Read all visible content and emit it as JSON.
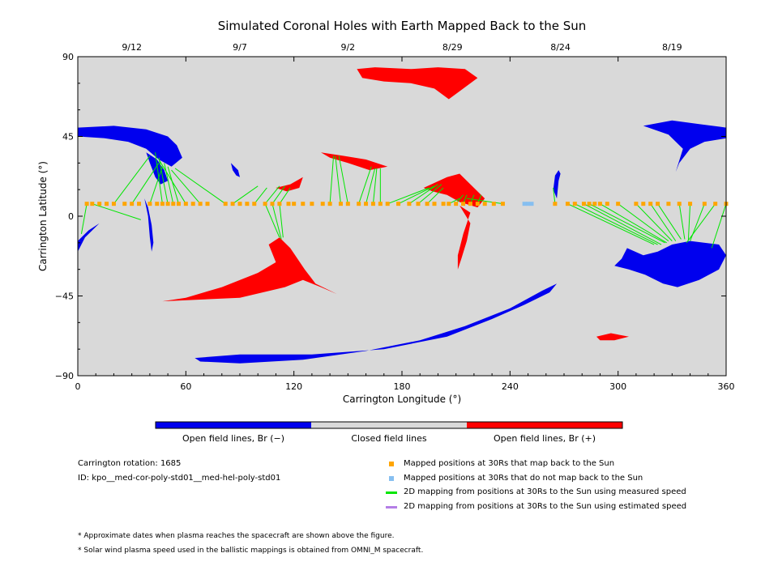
{
  "chart_data": {
    "type": "scatter",
    "title": "Simulated Coronal Holes with Earth Mapped Back to the Sun",
    "xlabel": "Carrington Longitude (°)",
    "ylabel": "Carrington Latitude (°)",
    "xlim": [
      0,
      360
    ],
    "ylim": [
      -90,
      90
    ],
    "x_ticks": [
      "0",
      "60",
      "120",
      "180",
      "240",
      "300",
      "360"
    ],
    "y_ticks": [
      "90",
      "45",
      "0",
      "−45",
      "−90"
    ],
    "top_axis_dates": [
      {
        "label": "9/12",
        "lon": 30
      },
      {
        "label": "9/7",
        "lon": 90
      },
      {
        "label": "9/2",
        "lon": 150
      },
      {
        "label": "8/29",
        "lon": 208
      },
      {
        "label": "8/24",
        "lon": 268
      },
      {
        "label": "8/19",
        "lon": 330
      }
    ],
    "colors": {
      "background": "#d9d9d9",
      "open_negative": "#0000ee",
      "open_positive": "#ff0000",
      "mapped": "#ffa500",
      "not_mapped": "#87bff0",
      "measured_line": "#00e600",
      "estimated_line": "#b47ee6"
    },
    "coronal_holes": [
      {
        "polarity": "negative",
        "outline": [
          [
            0,
            50
          ],
          [
            20,
            51
          ],
          [
            38,
            49
          ],
          [
            50,
            45
          ],
          [
            55,
            40
          ],
          [
            58,
            33
          ],
          [
            52,
            28
          ],
          [
            45,
            32
          ],
          [
            38,
            38
          ],
          [
            28,
            42
          ],
          [
            15,
            44
          ],
          [
            0,
            45
          ]
        ]
      },
      {
        "polarity": "negative",
        "outline": [
          [
            38,
            36
          ],
          [
            44,
            32
          ],
          [
            48,
            26
          ],
          [
            50,
            20
          ],
          [
            46,
            18
          ],
          [
            43,
            22
          ],
          [
            40,
            30
          ]
        ]
      },
      {
        "polarity": "negative",
        "outline": [
          [
            37,
            10
          ],
          [
            39,
            0
          ],
          [
            40,
            -12
          ],
          [
            41,
            -20
          ],
          [
            42,
            -15
          ],
          [
            41,
            -5
          ],
          [
            39,
            5
          ]
        ]
      },
      {
        "polarity": "negative",
        "outline": [
          [
            85,
            30
          ],
          [
            89,
            26
          ],
          [
            90,
            22
          ],
          [
            88,
            23
          ],
          [
            86,
            26
          ]
        ]
      },
      {
        "polarity": "negative",
        "outline": [
          [
            0,
            -14
          ],
          [
            6,
            -8
          ],
          [
            12,
            -4
          ],
          [
            8,
            -8
          ],
          [
            4,
            -12
          ],
          [
            0,
            -20
          ]
        ]
      },
      {
        "polarity": "negative",
        "outline": [
          [
            314,
            51
          ],
          [
            330,
            54
          ],
          [
            345,
            52
          ],
          [
            360,
            50
          ],
          [
            360,
            44
          ],
          [
            348,
            42
          ],
          [
            340,
            38
          ],
          [
            334,
            30
          ],
          [
            332,
            25
          ],
          [
            336,
            38
          ],
          [
            328,
            46
          ]
        ]
      },
      {
        "polarity": "negative",
        "outline": [
          [
            265,
            23
          ],
          [
            267,
            26
          ],
          [
            268,
            24
          ],
          [
            267,
            20
          ],
          [
            266,
            10
          ],
          [
            264,
            15
          ]
        ]
      },
      {
        "polarity": "negative",
        "outline": [
          [
            305,
            -18
          ],
          [
            314,
            -22
          ],
          [
            322,
            -20
          ],
          [
            330,
            -16
          ],
          [
            340,
            -14
          ],
          [
            356,
            -16
          ],
          [
            360,
            -22
          ],
          [
            356,
            -30
          ],
          [
            345,
            -36
          ],
          [
            333,
            -40
          ],
          [
            325,
            -38
          ],
          [
            315,
            -33
          ],
          [
            306,
            -30
          ],
          [
            298,
            -28
          ],
          [
            302,
            -24
          ]
        ]
      },
      {
        "polarity": "negative",
        "outline": [
          [
            65,
            -80
          ],
          [
            90,
            -78
          ],
          [
            130,
            -78
          ],
          [
            170,
            -75
          ],
          [
            205,
            -68
          ],
          [
            230,
            -58
          ],
          [
            248,
            -50
          ],
          [
            262,
            -43
          ],
          [
            266,
            -38
          ],
          [
            258,
            -42
          ],
          [
            240,
            -52
          ],
          [
            215,
            -62
          ],
          [
            190,
            -70
          ],
          [
            160,
            -76
          ],
          [
            125,
            -81
          ],
          [
            90,
            -83
          ],
          [
            68,
            -82
          ]
        ]
      },
      {
        "polarity": "positive",
        "outline": [
          [
            155,
            83
          ],
          [
            165,
            84
          ],
          [
            185,
            83
          ],
          [
            200,
            84
          ],
          [
            215,
            83
          ],
          [
            222,
            78
          ],
          [
            214,
            72
          ],
          [
            206,
            66
          ],
          [
            198,
            72
          ],
          [
            185,
            75
          ],
          [
            170,
            76
          ],
          [
            158,
            78
          ]
        ]
      },
      {
        "polarity": "positive",
        "outline": [
          [
            135,
            36
          ],
          [
            148,
            34
          ],
          [
            160,
            32
          ],
          [
            172,
            28
          ],
          [
            162,
            26
          ],
          [
            150,
            30
          ],
          [
            140,
            33
          ]
        ]
      },
      {
        "polarity": "positive",
        "outline": [
          [
            110,
            16
          ],
          [
            118,
            18
          ],
          [
            125,
            22
          ],
          [
            123,
            16
          ],
          [
            116,
            14
          ]
        ]
      },
      {
        "polarity": "positive",
        "outline": [
          [
            192,
            16
          ],
          [
            205,
            22
          ],
          [
            212,
            24
          ],
          [
            218,
            18
          ],
          [
            226,
            10
          ],
          [
            222,
            5
          ],
          [
            212,
            8
          ],
          [
            205,
            12
          ],
          [
            197,
            14
          ]
        ]
      },
      {
        "polarity": "positive",
        "outline": [
          [
            212,
            6
          ],
          [
            218,
            2
          ],
          [
            214,
            -10
          ],
          [
            211,
            -22
          ],
          [
            211,
            -30
          ],
          [
            213,
            -24
          ],
          [
            216,
            -14
          ],
          [
            218,
            -4
          ]
        ]
      },
      {
        "polarity": "positive",
        "outline": [
          [
            47,
            -48
          ],
          [
            90,
            -46
          ],
          [
            115,
            -40
          ],
          [
            125,
            -36
          ],
          [
            135,
            -40
          ],
          [
            144,
            -44
          ],
          [
            132,
            -38
          ],
          [
            126,
            -30
          ],
          [
            118,
            -18
          ],
          [
            112,
            -12
          ],
          [
            106,
            -16
          ],
          [
            110,
            -26
          ],
          [
            100,
            -32
          ],
          [
            80,
            -40
          ],
          [
            60,
            -46
          ]
        ]
      },
      {
        "polarity": "positive",
        "outline": [
          [
            288,
            -68
          ],
          [
            296,
            -66
          ],
          [
            306,
            -68
          ],
          [
            298,
            -70
          ],
          [
            290,
            -70
          ]
        ]
      }
    ],
    "mapped_points_lat": 7.0,
    "mapped_points_lon": [
      5,
      8,
      12,
      16,
      20,
      26,
      30,
      34,
      40,
      44,
      47,
      50,
      53,
      56,
      60,
      64,
      68,
      72,
      82,
      86,
      90,
      94,
      98,
      104,
      108,
      112,
      117,
      120,
      125,
      130,
      136,
      140,
      146,
      150,
      156,
      160,
      164,
      168,
      172,
      178,
      184,
      189,
      194,
      198,
      203,
      206,
      210,
      214,
      218,
      222,
      226,
      231,
      236,
      265,
      272,
      276,
      281,
      284,
      287,
      290,
      294,
      300,
      310,
      314,
      318,
      322,
      328,
      334,
      340,
      348,
      354,
      360
    ],
    "not_mapped_points_lon": [
      248,
      250,
      252
    ],
    "field_line_mappings": [
      [
        5,
        7,
        2,
        -10
      ],
      [
        8,
        7,
        35,
        -2
      ],
      [
        20,
        7,
        40,
        34
      ],
      [
        30,
        7,
        45,
        30
      ],
      [
        40,
        7,
        47,
        28
      ],
      [
        47,
        7,
        43,
        36
      ],
      [
        50,
        7,
        45,
        33
      ],
      [
        53,
        7,
        48,
        30
      ],
      [
        56,
        7,
        50,
        28
      ],
      [
        60,
        7,
        45,
        32
      ],
      [
        68,
        7,
        52,
        26
      ],
      [
        82,
        7,
        54,
        27
      ],
      [
        86,
        7,
        100,
        17
      ],
      [
        98,
        7,
        105,
        16
      ],
      [
        104,
        7,
        112,
        17
      ],
      [
        108,
        7,
        115,
        17
      ],
      [
        112,
        7,
        118,
        16
      ],
      [
        104,
        7,
        112,
        -12
      ],
      [
        108,
        7,
        113,
        -13
      ],
      [
        112,
        7,
        114,
        -12
      ],
      [
        140,
        7,
        142,
        34
      ],
      [
        146,
        7,
        143,
        34
      ],
      [
        150,
        7,
        145,
        34
      ],
      [
        156,
        7,
        163,
        28
      ],
      [
        160,
        7,
        165,
        27
      ],
      [
        164,
        7,
        166,
        27
      ],
      [
        168,
        7,
        168,
        27
      ],
      [
        172,
        7,
        195,
        16
      ],
      [
        178,
        7,
        198,
        17
      ],
      [
        184,
        7,
        200,
        18
      ],
      [
        189,
        7,
        202,
        18
      ],
      [
        194,
        7,
        203,
        16
      ],
      [
        206,
        7,
        212,
        10
      ],
      [
        210,
        7,
        214,
        12
      ],
      [
        214,
        7,
        216,
        12
      ],
      [
        218,
        7,
        220,
        12
      ],
      [
        222,
        7,
        224,
        12
      ],
      [
        236,
        7,
        216,
        10
      ],
      [
        265,
        7,
        264,
        16
      ],
      [
        272,
        7,
        320,
        -16
      ],
      [
        276,
        7,
        322,
        -16
      ],
      [
        281,
        7,
        324,
        -16
      ],
      [
        284,
        7,
        326,
        -15
      ],
      [
        290,
        7,
        327,
        -15
      ],
      [
        300,
        7,
        328,
        -14
      ],
      [
        310,
        7,
        330,
        -14
      ],
      [
        318,
        7,
        332,
        -14
      ],
      [
        322,
        7,
        335,
        -13
      ],
      [
        334,
        7,
        337,
        -13
      ],
      [
        340,
        7,
        339,
        -14
      ],
      [
        348,
        7,
        340,
        -14
      ],
      [
        354,
        7,
        338,
        -15
      ],
      [
        360,
        7,
        352,
        -18
      ]
    ]
  },
  "colorbar": {
    "labels": [
      "Open field lines, Br (−)",
      "Closed field lines",
      "Open field lines, Br (+)"
    ]
  },
  "info": {
    "rotation": "Carrington rotation: 1685",
    "id": "ID: kpo__med-cor-poly-std01__med-hel-poly-std01"
  },
  "legend": [
    {
      "marker": "square",
      "color": "#ffa500",
      "label": "Mapped positions at 30Rs that map back to the Sun"
    },
    {
      "marker": "square",
      "color": "#87bff0",
      "label": "Mapped positions at 30Rs that do not map back to the Sun"
    },
    {
      "marker": "line",
      "color": "#00e600",
      "label": "2D mapping from positions at 30Rs to the Sun using measured speed"
    },
    {
      "marker": "line",
      "color": "#b47ee6",
      "label": "2D mapping from positions at 30Rs to the Sun using estimated speed"
    }
  ],
  "footnotes": [
    "* Approximate dates when plasma reaches the spacecraft are shown above the figure.",
    "* Solar wind plasma speed used in the ballistic mappings is obtained from OMNI_M spacecraft."
  ]
}
